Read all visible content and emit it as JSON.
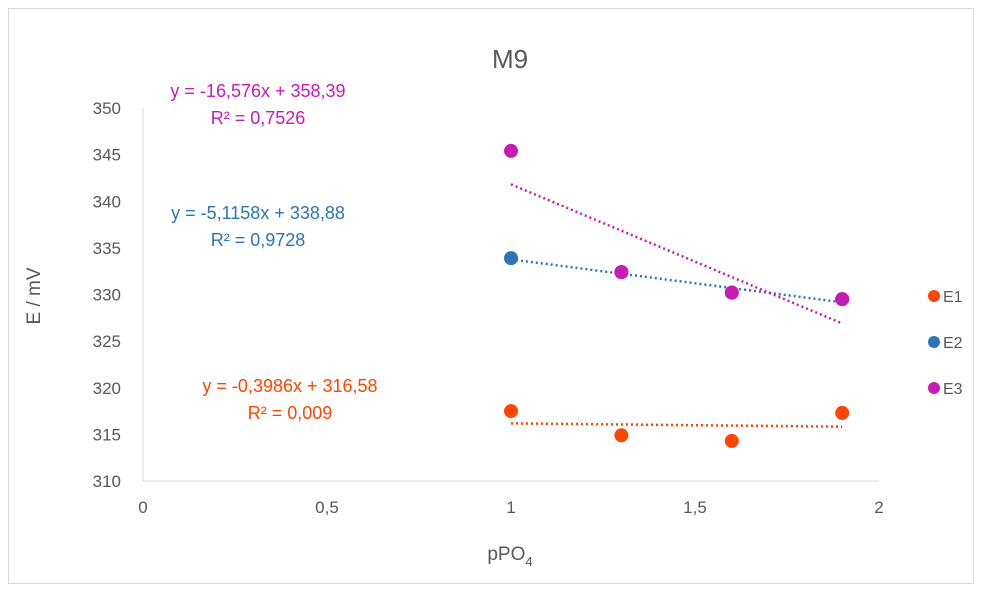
{
  "chart_data": {
    "type": "scatter",
    "title": "M9",
    "xlabel_main": "pPO",
    "xlabel_sub": "4",
    "ylabel": "E / mV",
    "xlim": [
      0,
      2
    ],
    "ylim": [
      310,
      350
    ],
    "xticks": [
      0,
      0.5,
      1,
      1.5,
      2
    ],
    "xtick_labels": [
      "0",
      "0,5",
      "1",
      "1,5",
      "2"
    ],
    "yticks": [
      310,
      315,
      320,
      325,
      330,
      335,
      340,
      345,
      350
    ],
    "ytick_labels": [
      "310",
      "315",
      "320",
      "325",
      "330",
      "335",
      "340",
      "345",
      "350"
    ],
    "grid": false,
    "legend_position": "right",
    "series": [
      {
        "name": "E1",
        "color": "#ff4500",
        "x": [
          1,
          1.3,
          1.6,
          1.9
        ],
        "y": [
          317.5,
          314.9,
          314.3,
          317.3
        ],
        "trendline": {
          "slope": -0.3986,
          "intercept": 316.58
        },
        "equation": "y = -0,3986x + 316,58",
        "r2": "R² = 0,009"
      },
      {
        "name": "E2",
        "color": "#2e75b6",
        "x": [
          1,
          1.3,
          1.6,
          1.9
        ],
        "y": [
          333.9,
          332.4,
          330.2,
          329.5
        ],
        "trendline": {
          "slope": -5.1158,
          "intercept": 338.88
        },
        "equation": "y = -5,1158x + 338,88",
        "r2": "R² = 0,9728"
      },
      {
        "name": "E3",
        "color": "#c71bb4",
        "x": [
          1,
          1.3,
          1.6,
          1.9
        ],
        "y": [
          345.4,
          332.4,
          330.2,
          329.5
        ],
        "trendline": {
          "slope": -16.576,
          "intercept": 358.39
        },
        "equation": "y = -16,576x + 358,39",
        "r2": "R² = 0,7526"
      }
    ]
  }
}
